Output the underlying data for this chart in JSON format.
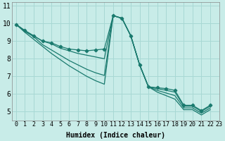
{
  "xlabel": "Humidex (Indice chaleur)",
  "ylabel": "",
  "background_color": "#c8ece8",
  "grid_color": "#a8d8d4",
  "line_color": "#1a7a6e",
  "xlim": [
    -0.5,
    23
  ],
  "ylim": [
    4.5,
    11.2
  ],
  "yticks": [
    5,
    6,
    7,
    8,
    9,
    10,
    11
  ],
  "xticks": [
    0,
    1,
    2,
    3,
    4,
    5,
    6,
    7,
    8,
    9,
    10,
    11,
    12,
    13,
    14,
    15,
    16,
    17,
    18,
    19,
    20,
    21,
    22,
    23
  ],
  "series": [
    {
      "y": [
        9.95,
        9.6,
        9.3,
        9.0,
        8.9,
        8.7,
        8.55,
        8.5,
        8.45,
        8.5,
        8.55,
        10.45,
        10.3,
        9.3,
        7.65,
        6.4,
        6.35,
        6.3,
        6.2,
        5.35,
        5.35,
        5.05,
        5.35
      ],
      "marker": true
    },
    {
      "y": [
        9.95,
        9.6,
        9.3,
        9.0,
        8.85,
        8.6,
        8.45,
        8.3,
        8.2,
        8.1,
        8.0,
        10.45,
        10.3,
        9.3,
        7.65,
        6.4,
        6.3,
        6.2,
        6.1,
        5.3,
        5.3,
        5.0,
        5.3
      ],
      "marker": false
    },
    {
      "y": [
        9.95,
        9.55,
        9.25,
        8.8,
        8.5,
        8.2,
        7.9,
        7.65,
        7.4,
        7.2,
        7.05,
        10.45,
        10.3,
        9.3,
        7.65,
        6.4,
        6.2,
        6.05,
        5.9,
        5.2,
        5.2,
        4.9,
        5.2
      ],
      "marker": false
    },
    {
      "y": [
        9.95,
        9.5,
        9.1,
        8.7,
        8.3,
        7.95,
        7.6,
        7.3,
        7.0,
        6.75,
        6.55,
        10.45,
        10.3,
        9.3,
        7.65,
        6.4,
        6.1,
        5.9,
        5.7,
        5.1,
        5.1,
        4.8,
        5.1
      ],
      "marker": false
    }
  ],
  "font_family": "monospace",
  "font_size_tick": 6,
  "font_size_label": 7
}
